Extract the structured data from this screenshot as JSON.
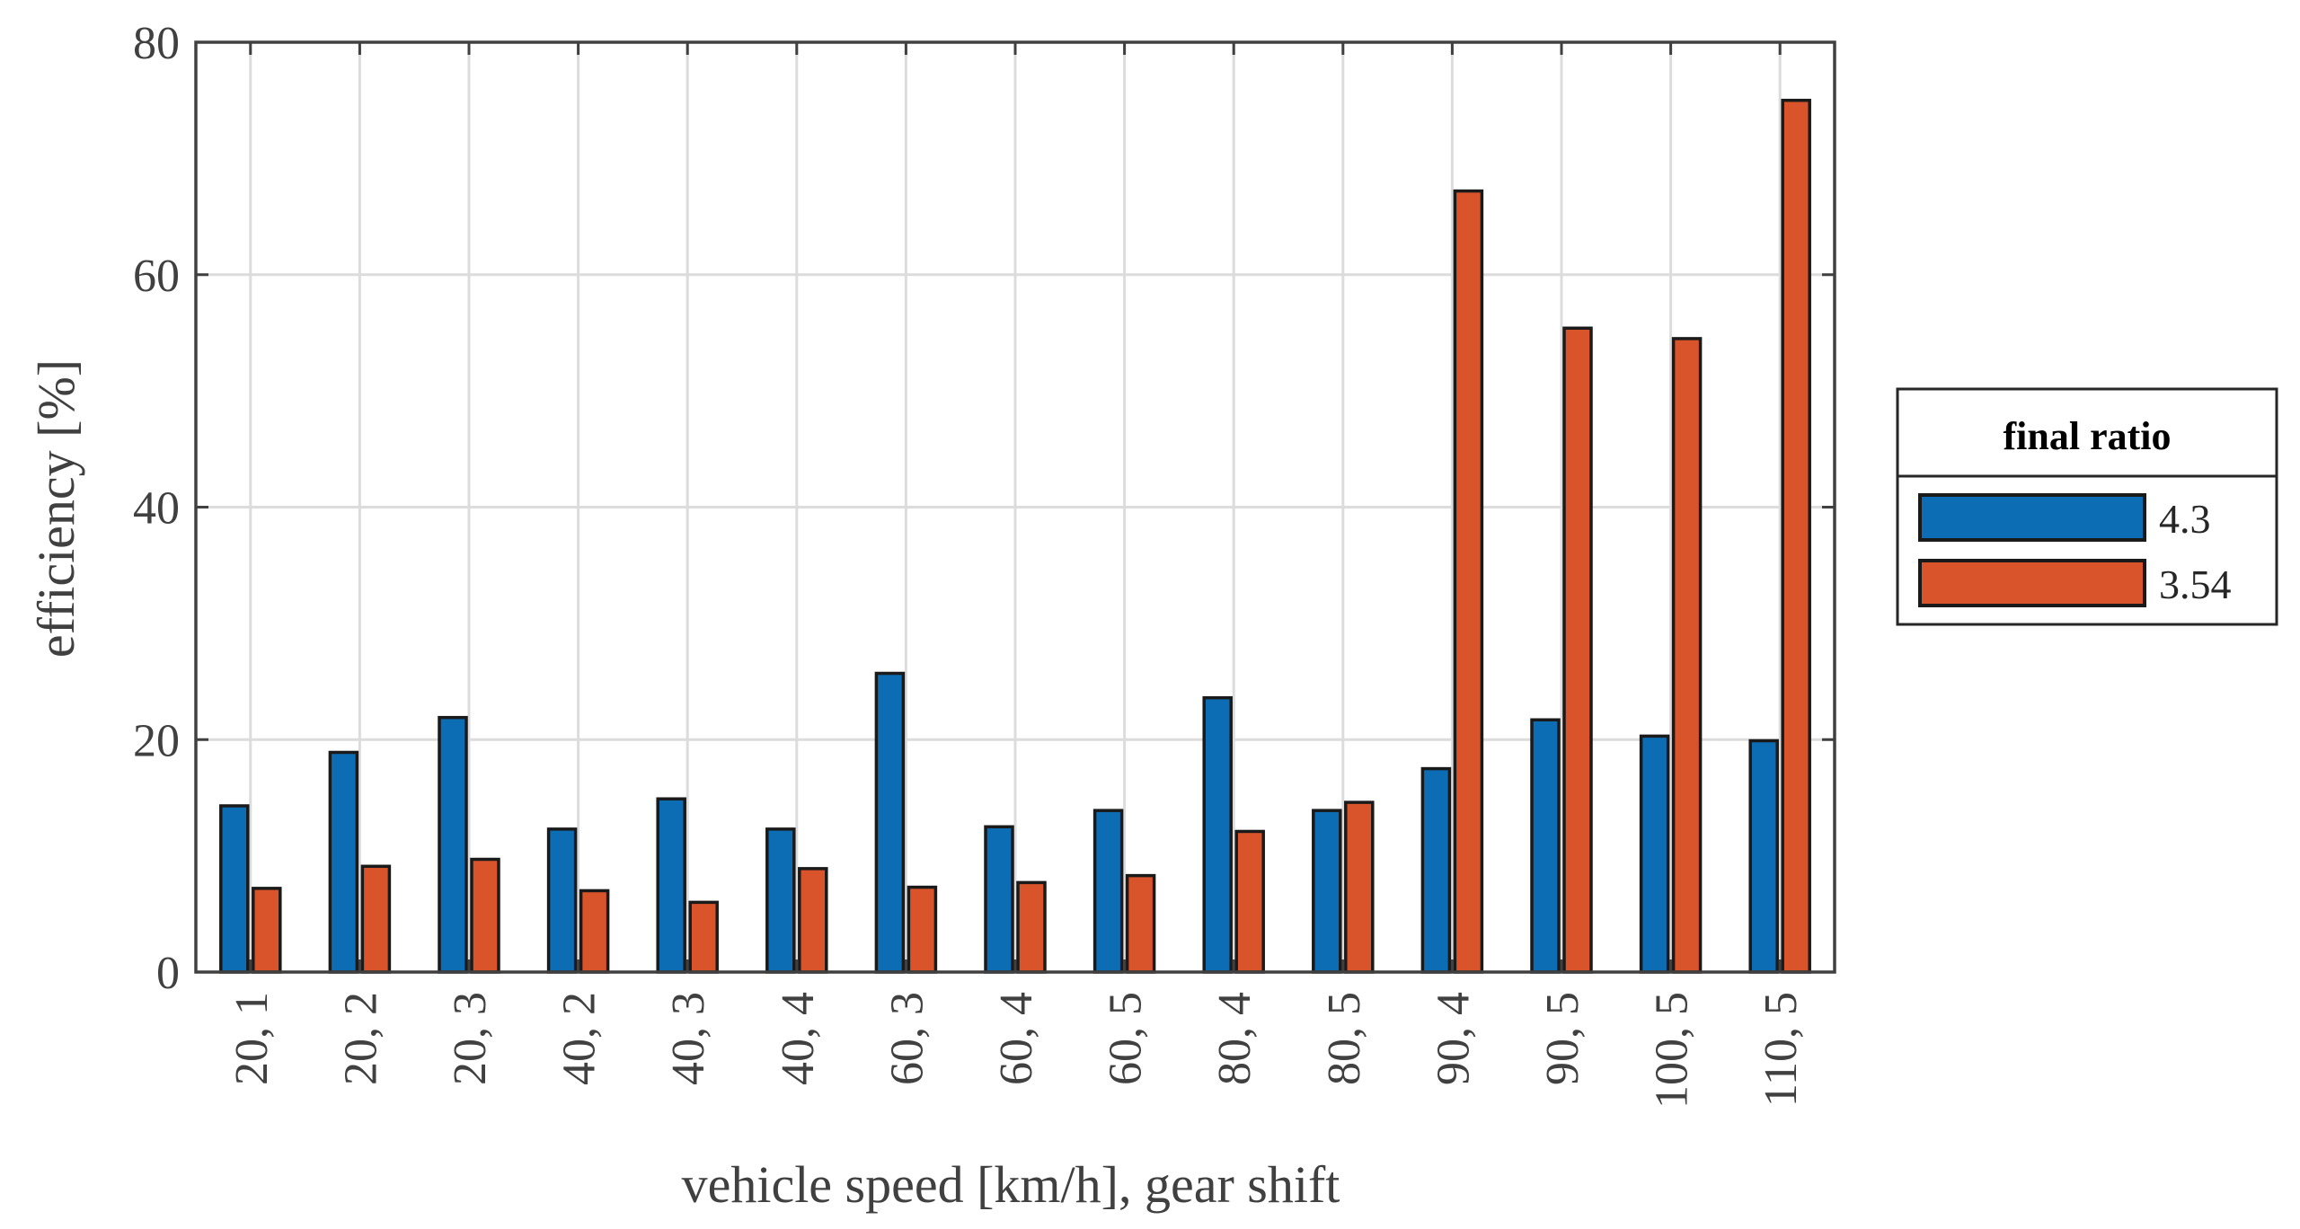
{
  "chart_data": {
    "type": "bar",
    "title": "",
    "xlabel": "vehicle speed [km/h], gear shift",
    "ylabel": "efficiency [%]",
    "ylim": [
      0,
      80
    ],
    "yticks": [
      0,
      20,
      40,
      60,
      80
    ],
    "grid": true,
    "categories": [
      "20, 1",
      "20, 2",
      "20, 3",
      "40, 2",
      "40, 3",
      "40, 4",
      "60, 3",
      "60, 4",
      "60, 5",
      "80, 4",
      "80, 5",
      "90, 4",
      "90, 5",
      "100, 5",
      "110, 5"
    ],
    "series": [
      {
        "name": "4.3",
        "color": "#0C6DB5",
        "values": [
          14.3,
          18.9,
          21.9,
          12.3,
          14.9,
          12.3,
          25.7,
          12.5,
          13.9,
          23.6,
          13.9,
          17.5,
          21.7,
          20.3,
          19.9
        ]
      },
      {
        "name": "3.54",
        "color": "#D9542A",
        "values": [
          7.2,
          9.1,
          9.7,
          7.0,
          6.0,
          8.9,
          7.3,
          7.7,
          8.3,
          12.1,
          14.6,
          67.2,
          55.4,
          54.5,
          75.0
        ]
      }
    ],
    "legend": {
      "title": "final ratio",
      "position": "outside-right"
    }
  }
}
